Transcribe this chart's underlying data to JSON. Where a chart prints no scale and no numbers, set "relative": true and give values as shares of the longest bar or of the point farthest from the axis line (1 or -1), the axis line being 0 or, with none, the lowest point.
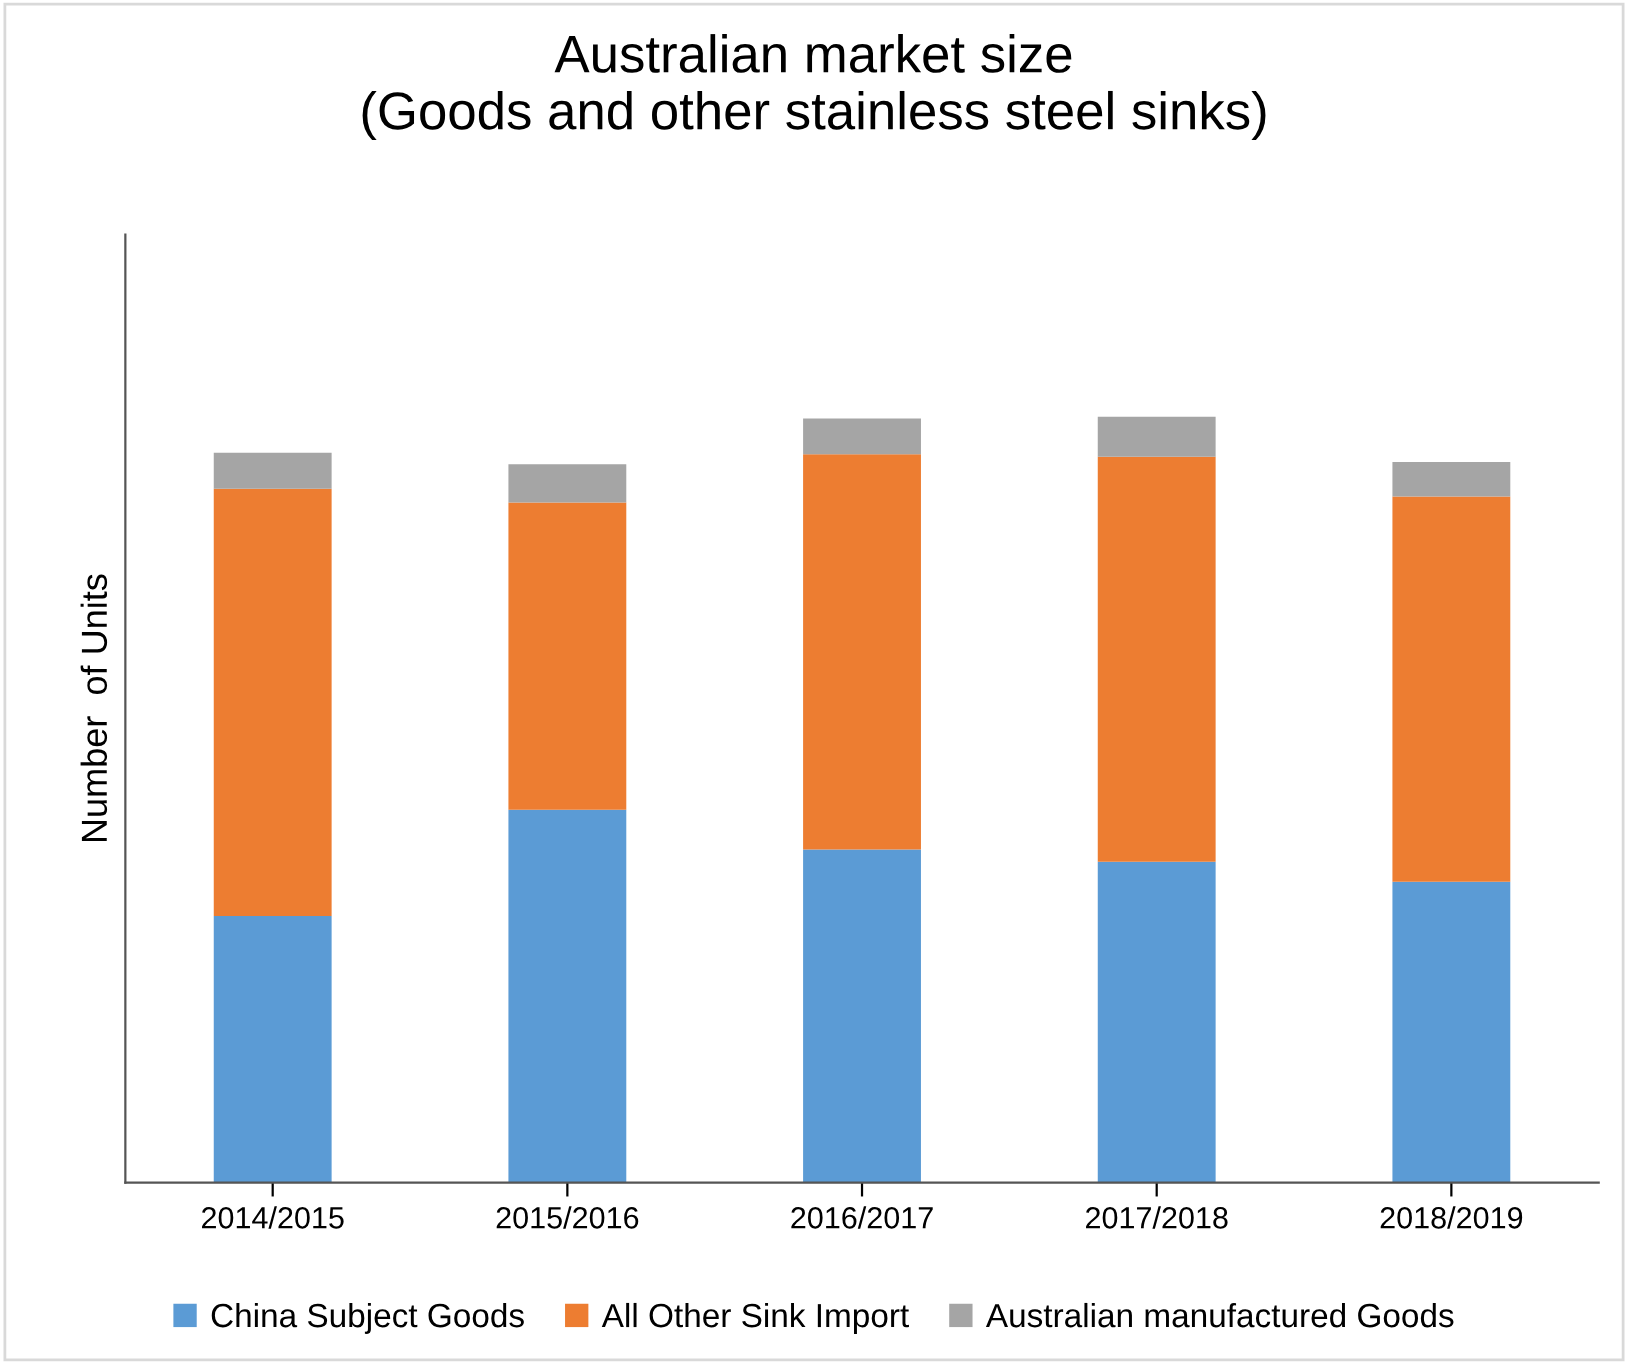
{
  "chart_data": {
    "type": "bar",
    "title": "Australian market size\n(Goods and other stainless steel sinks)",
    "ylabel": "Number  of Units",
    "categories": [
      "2014/2015",
      "2015/2016",
      "2016/2017",
      "2017/2018",
      "2018/2019"
    ],
    "stacked": true,
    "relative": true,
    "legend": "bottom",
    "grid": false,
    "series": [
      {
        "name": "China Subject Goods",
        "color": "#5b9bd5",
        "values": [
          0.348,
          0.487,
          0.435,
          0.419,
          0.393
        ]
      },
      {
        "name": "All Other Sink Import",
        "color": "#ed7d31",
        "values": [
          0.558,
          0.401,
          0.516,
          0.529,
          0.503
        ]
      },
      {
        "name": "Australian manufactured Goods",
        "color": "#a5a5a5",
        "values": [
          0.047,
          0.05,
          0.047,
          0.052,
          0.045
        ]
      }
    ]
  }
}
